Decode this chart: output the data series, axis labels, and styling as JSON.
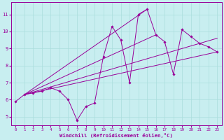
{
  "title": "",
  "xlabel": "Windchill (Refroidissement éolien,°C)",
  "ylabel": "",
  "background_color": "#c8eef0",
  "line_color": "#990099",
  "grid_color": "#aadddd",
  "xlim": [
    -0.5,
    23.5
  ],
  "ylim": [
    4.5,
    11.7
  ],
  "xticks": [
    0,
    1,
    2,
    3,
    4,
    5,
    6,
    7,
    8,
    9,
    10,
    11,
    12,
    13,
    14,
    15,
    16,
    17,
    18,
    19,
    20,
    21,
    22,
    23
  ],
  "yticks": [
    5,
    6,
    7,
    8,
    9,
    10,
    11
  ],
  "hours": [
    0,
    1,
    2,
    3,
    4,
    5,
    6,
    7,
    8,
    9,
    10,
    11,
    12,
    13,
    14,
    15,
    16,
    17,
    18,
    19,
    20,
    21,
    22,
    23
  ],
  "values": [
    5.9,
    6.3,
    6.4,
    6.5,
    6.7,
    6.5,
    6.0,
    4.8,
    5.6,
    5.8,
    8.5,
    10.3,
    9.5,
    7.0,
    11.0,
    11.3,
    9.8,
    9.4,
    7.5,
    10.1,
    9.7,
    9.3,
    9.1,
    8.8
  ],
  "fan_lines": [
    {
      "x0": 1,
      "y0": 6.3,
      "x1": 23,
      "y1": 8.8
    },
    {
      "x0": 1,
      "y0": 6.3,
      "x1": 23,
      "y1": 9.6
    },
    {
      "x0": 1,
      "y0": 6.3,
      "x1": 15,
      "y1": 11.3
    },
    {
      "x0": 1,
      "y0": 6.3,
      "x1": 16,
      "y1": 9.8
    }
  ]
}
